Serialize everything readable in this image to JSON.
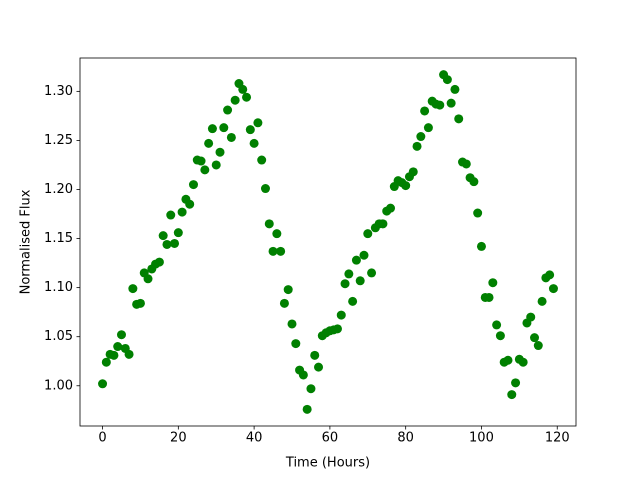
{
  "chart_data": {
    "type": "scatter",
    "x_label": "Time (Hours)",
    "y_label": "Normalised Flux",
    "series": [
      {
        "color": "#008000",
        "x": [
          0,
          1,
          2,
          3,
          4,
          5,
          6,
          7,
          8,
          9,
          10,
          11,
          12,
          13,
          14,
          15,
          16,
          17,
          18,
          19,
          20,
          21,
          22,
          23,
          24,
          25,
          26,
          27,
          28,
          29,
          30,
          31,
          32,
          33,
          34,
          35,
          36,
          37,
          38,
          39,
          40,
          41,
          42,
          43,
          44,
          45,
          46,
          47,
          48,
          49,
          50,
          51,
          52,
          53,
          54,
          55,
          56,
          57,
          58,
          59,
          60,
          61,
          62,
          63,
          64,
          65,
          66,
          67,
          68,
          69,
          70,
          71,
          72,
          73,
          74,
          75,
          76,
          77,
          78,
          79,
          80,
          81,
          82,
          83,
          84,
          85,
          86,
          87,
          88,
          89,
          90,
          91,
          92,
          93,
          94,
          95,
          96,
          97,
          98,
          99,
          100,
          101,
          102,
          103,
          104,
          105,
          106,
          107,
          108,
          109,
          110,
          111,
          112,
          113,
          114,
          115,
          116,
          117,
          118,
          119
        ],
        "values": [
          1.002,
          1.024,
          1.032,
          1.031,
          1.04,
          1.052,
          1.038,
          1.032,
          1.099,
          1.083,
          1.084,
          1.115,
          1.109,
          1.119,
          1.124,
          1.126,
          1.153,
          1.144,
          1.174,
          1.145,
          1.156,
          1.177,
          1.19,
          1.185,
          1.205,
          1.23,
          1.229,
          1.22,
          1.247,
          1.262,
          1.225,
          1.238,
          1.263,
          1.281,
          1.253,
          1.291,
          1.308,
          1.302,
          1.294,
          1.261,
          1.247,
          1.268,
          1.23,
          1.201,
          1.165,
          1.137,
          1.155,
          1.137,
          1.084,
          1.098,
          1.063,
          1.043,
          1.016,
          1.011,
          0.976,
          0.997,
          1.031,
          1.019,
          1.051,
          1.054,
          1.056,
          1.057,
          1.058,
          1.072,
          1.104,
          1.114,
          1.086,
          1.128,
          1.107,
          1.133,
          1.155,
          1.115,
          1.161,
          1.165,
          1.165,
          1.178,
          1.181,
          1.203,
          1.209,
          1.207,
          1.204,
          1.213,
          1.218,
          1.244,
          1.254,
          1.28,
          1.263,
          1.29,
          1.287,
          1.286,
          1.317,
          1.312,
          1.288,
          1.302,
          1.272,
          1.228,
          1.226,
          1.212,
          1.208,
          1.176,
          1.142,
          1.09,
          1.09,
          1.105,
          1.062,
          1.051,
          1.024,
          1.026,
          0.991,
          1.003,
          1.027,
          1.024,
          1.064,
          1.07,
          1.049,
          1.041,
          1.086,
          1.11,
          1.113,
          1.099
        ]
      }
    ],
    "xlim": [
      -5.95,
      124.95
    ],
    "ylim": [
      0.959,
      1.334
    ],
    "xticks": [
      0,
      20,
      40,
      60,
      80,
      100,
      120
    ],
    "yticks": [
      {
        "value": 1.0,
        "label": "1.00"
      },
      {
        "value": 1.05,
        "label": "1.05"
      },
      {
        "value": 1.1,
        "label": "1.10"
      },
      {
        "value": 1.15,
        "label": "1.15"
      },
      {
        "value": 1.2,
        "label": "1.20"
      },
      {
        "value": 1.25,
        "label": "1.25"
      },
      {
        "value": 1.3,
        "label": "1.30"
      }
    ],
    "grid": false
  }
}
